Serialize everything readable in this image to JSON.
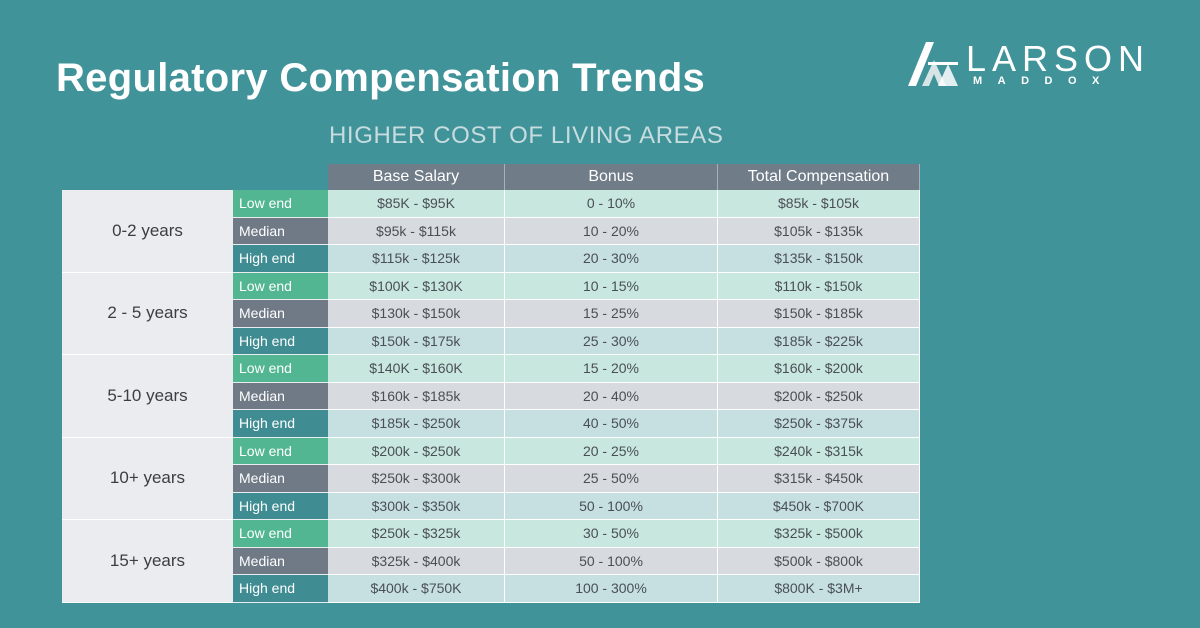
{
  "title": "Regulatory Compensation Trends",
  "subtitle": "HIGHER COST OF LIVING AREAS",
  "logo": {
    "name": "LARSON",
    "sub": "MADDOX"
  },
  "table": {
    "columns": [
      "Base Salary",
      "Bonus",
      "Total Compensation"
    ],
    "level_colors": {
      "Low end": "#52b693",
      "Median": "#6f7a86",
      "High end": "#3f8c93"
    },
    "groups": [
      {
        "years": "0-2 years",
        "rows": [
          {
            "level": "Low end",
            "base": "$85K - $95K",
            "bonus": "0 - 10%",
            "total": "$85k - $105k"
          },
          {
            "level": "Median",
            "base": "$95k - $115k",
            "bonus": "10 - 20%",
            "total": "$105k - $135k"
          },
          {
            "level": "High end",
            "base": "$115k - $125k",
            "bonus": "20 - 30%",
            "total": "$135k - $150k"
          }
        ]
      },
      {
        "years": "2 - 5 years",
        "rows": [
          {
            "level": "Low end",
            "base": "$100K - $130K",
            "bonus": "10 - 15%",
            "total": "$110k - $150k"
          },
          {
            "level": "Median",
            "base": "$130k - $150k",
            "bonus": "15 - 25%",
            "total": "$150k - $185k"
          },
          {
            "level": "High end",
            "base": "$150k - $175k",
            "bonus": "25 - 30%",
            "total": "$185k - $225k"
          }
        ]
      },
      {
        "years": "5-10 years",
        "rows": [
          {
            "level": "Low end",
            "base": "$140K - $160K",
            "bonus": "15 - 20%",
            "total": "$160k - $200k"
          },
          {
            "level": "Median",
            "base": "$160k - $185k",
            "bonus": "20 - 40%",
            "total": "$200k - $250k"
          },
          {
            "level": "High end",
            "base": "$185k - $250k",
            "bonus": "40 - 50%",
            "total": "$250k - $375k"
          }
        ]
      },
      {
        "years": "10+ years",
        "rows": [
          {
            "level": "Low end",
            "base": "$200k - $250k",
            "bonus": "20 - 25%",
            "total": "$240k - $315k"
          },
          {
            "level": "Median",
            "base": "$250k - $300k",
            "bonus": "25 - 50%",
            "total": "$315k - $450k"
          },
          {
            "level": "High end",
            "base": "$300k - $350k",
            "bonus": "50 - 100%",
            "total": "$450k - $700K"
          }
        ]
      },
      {
        "years": "15+ years",
        "rows": [
          {
            "level": "Low end",
            "base": "$250k - $325k",
            "bonus": "30 - 50%",
            "total": "$325k - $500k"
          },
          {
            "level": "Median",
            "base": "$325k - $400k",
            "bonus": "50 - 100%",
            "total": "$500k - $800k"
          },
          {
            "level": "High end",
            "base": "$400k - $750K",
            "bonus": "100 - 300%",
            "total": "$800K - $3M+"
          }
        ]
      }
    ]
  }
}
